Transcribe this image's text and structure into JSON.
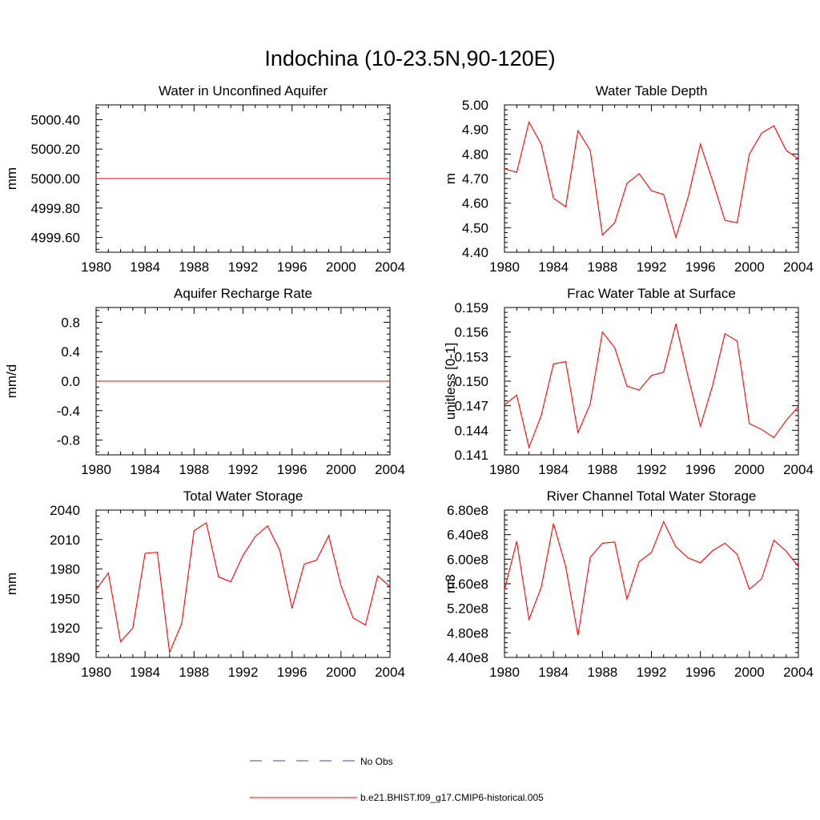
{
  "page": {
    "title": "Indochina (10-23.5N,90-120E)"
  },
  "colors": {
    "model": "#ff0000",
    "obs": "#3b3bbf",
    "axis": "#000000"
  },
  "legend": {
    "obs_label": "No Obs",
    "model_label": "b.e21.BHIST.f09_g17.CMIP6-historical.005"
  },
  "chart_data": [
    {
      "type": "line",
      "title": "Water in Unconfined Aquifer",
      "ylabel": "mm",
      "xlim": [
        1980,
        2004
      ],
      "ylim": [
        4999.5,
        5000.5
      ],
      "xticks": [
        1980,
        1984,
        1988,
        1992,
        1996,
        2000,
        2004
      ],
      "yticks": [
        4999.6,
        4999.8,
        5000.0,
        5000.2,
        5000.4
      ],
      "ytick_labels": [
        "4999.60",
        "4999.80",
        "5000.00",
        "5000.20",
        "5000.40"
      ],
      "x": [
        1980,
        2004
      ],
      "series": [
        {
          "name": "b.e21.BHIST.f09_g17.CMIP6-historical.005",
          "values": [
            5000.0,
            5000.0
          ]
        }
      ]
    },
    {
      "type": "line",
      "title": "Water Table Depth",
      "ylabel": "m",
      "xlim": [
        1980,
        2004
      ],
      "ylim": [
        4.4,
        5.0
      ],
      "xticks": [
        1980,
        1984,
        1988,
        1992,
        1996,
        2000,
        2004
      ],
      "yticks": [
        4.4,
        4.5,
        4.6,
        4.7,
        4.8,
        4.9,
        5.0
      ],
      "ytick_labels": [
        "4.40",
        "4.50",
        "4.60",
        "4.70",
        "4.80",
        "4.90",
        "5.00"
      ],
      "x": [
        1980,
        1981,
        1982,
        1983,
        1984,
        1985,
        1986,
        1987,
        1988,
        1989,
        1990,
        1991,
        1992,
        1993,
        1994,
        1995,
        1996,
        1997,
        1998,
        1999,
        2000,
        2001,
        2002,
        2003,
        2004
      ],
      "series": [
        {
          "name": "b.e21.BHIST.f09_g17.CMIP6-historical.005",
          "values": [
            4.74,
            4.725,
            4.93,
            4.84,
            4.62,
            4.585,
            4.895,
            4.815,
            4.47,
            4.52,
            4.68,
            4.72,
            4.65,
            4.635,
            4.46,
            4.625,
            4.84,
            4.69,
            4.53,
            4.52,
            4.8,
            4.885,
            4.915,
            4.815,
            4.78
          ]
        }
      ]
    },
    {
      "type": "line",
      "title": "Aquifer Recharge Rate",
      "ylabel": "mm/d",
      "xlim": [
        1980,
        2004
      ],
      "ylim": [
        -1.0,
        1.0
      ],
      "xticks": [
        1980,
        1984,
        1988,
        1992,
        1996,
        2000,
        2004
      ],
      "yticks": [
        -0.8,
        -0.4,
        0.0,
        0.4,
        0.8
      ],
      "ytick_labels": [
        "-0.8",
        "-0.4",
        "0.0",
        "0.4",
        "0.8"
      ],
      "x": [
        1980,
        2004
      ],
      "series": [
        {
          "name": "b.e21.BHIST.f09_g17.CMIP6-historical.005",
          "values": [
            0.0,
            0.0
          ]
        }
      ]
    },
    {
      "type": "line",
      "title": "Frac Water Table at Surface",
      "ylabel": "unitless [0-1]",
      "xlim": [
        1980,
        2004
      ],
      "ylim": [
        0.141,
        0.159
      ],
      "xticks": [
        1980,
        1984,
        1988,
        1992,
        1996,
        2000,
        2004
      ],
      "yticks": [
        0.141,
        0.144,
        0.147,
        0.15,
        0.153,
        0.156,
        0.159
      ],
      "ytick_labels": [
        "0.141",
        "0.144",
        "0.147",
        "0.150",
        "0.153",
        "0.156",
        "0.159"
      ],
      "x": [
        1980,
        1981,
        1982,
        1983,
        1984,
        1985,
        1986,
        1987,
        1988,
        1989,
        1990,
        1991,
        1992,
        1993,
        1994,
        1995,
        1996,
        1997,
        1998,
        1999,
        2000,
        2001,
        2002,
        2003,
        2004
      ],
      "series": [
        {
          "name": "b.e21.BHIST.f09_g17.CMIP6-historical.005",
          "values": [
            0.1471,
            0.1483,
            0.1419,
            0.1458,
            0.1521,
            0.1524,
            0.1437,
            0.1472,
            0.156,
            0.1541,
            0.1494,
            0.1489,
            0.1507,
            0.1511,
            0.157,
            0.1505,
            0.1445,
            0.1495,
            0.1558,
            0.1549,
            0.1448,
            0.1441,
            0.1431,
            0.1452,
            0.1469
          ]
        }
      ]
    },
    {
      "type": "line",
      "title": "Total Water Storage",
      "ylabel": "mm",
      "xlim": [
        1980,
        2004
      ],
      "ylim": [
        1890,
        2040
      ],
      "xticks": [
        1980,
        1984,
        1988,
        1992,
        1996,
        2000,
        2004
      ],
      "yticks": [
        1890,
        1920,
        1950,
        1980,
        2010,
        2040
      ],
      "ytick_labels": [
        "1890",
        "1920",
        "1950",
        "1980",
        "2010",
        "2040"
      ],
      "x": [
        1980,
        1981,
        1982,
        1983,
        1984,
        1985,
        1986,
        1987,
        1988,
        1989,
        1990,
        1991,
        1992,
        1993,
        1994,
        1995,
        1996,
        1997,
        1998,
        1999,
        2000,
        2001,
        2002,
        2003,
        2004
      ],
      "series": [
        {
          "name": "b.e21.BHIST.f09_g17.CMIP6-historical.005",
          "values": [
            1959,
            1976,
            1906,
            1920,
            1996,
            1997,
            1895,
            1925,
            2019,
            2027,
            1972,
            1967,
            1994,
            2013,
            2024,
            1999,
            1940,
            1985,
            1989,
            2014,
            1963,
            1930,
            1923,
            1973,
            1962
          ]
        }
      ]
    },
    {
      "type": "line",
      "title": "River Channel Total Water Storage",
      "ylabel": "m3",
      "xlim": [
        1980,
        2004
      ],
      "ylim": [
        440000000.0,
        680000000.0
      ],
      "xticks": [
        1980,
        1984,
        1988,
        1992,
        1996,
        2000,
        2004
      ],
      "yticks": [
        440000000.0,
        480000000.0,
        520000000.0,
        560000000.0,
        600000000.0,
        640000000.0,
        680000000.0
      ],
      "ytick_labels": [
        "4.40e8",
        "4.80e8",
        "5.20e8",
        "5.60e8",
        "6.00e8",
        "6.40e8",
        "6.80e8"
      ],
      "x": [
        1980,
        1981,
        1982,
        1983,
        1984,
        1985,
        1986,
        1987,
        1988,
        1989,
        1990,
        1991,
        1992,
        1993,
        1994,
        1995,
        1996,
        1997,
        1998,
        1999,
        2000,
        2001,
        2002,
        2003,
        2004
      ],
      "series": [
        {
          "name": "b.e21.BHIST.f09_g17.CMIP6-historical.005",
          "values": [
            550000000.0,
            629000000.0,
            502000000.0,
            554000000.0,
            658000000.0,
            588000000.0,
            476000000.0,
            603000000.0,
            626000000.0,
            628000000.0,
            535000000.0,
            596000000.0,
            611000000.0,
            661000000.0,
            620000000.0,
            602000000.0,
            594000000.0,
            614000000.0,
            626000000.0,
            608000000.0,
            551000000.0,
            568000000.0,
            631000000.0,
            613000000.0,
            588000000.0
          ]
        }
      ]
    }
  ]
}
